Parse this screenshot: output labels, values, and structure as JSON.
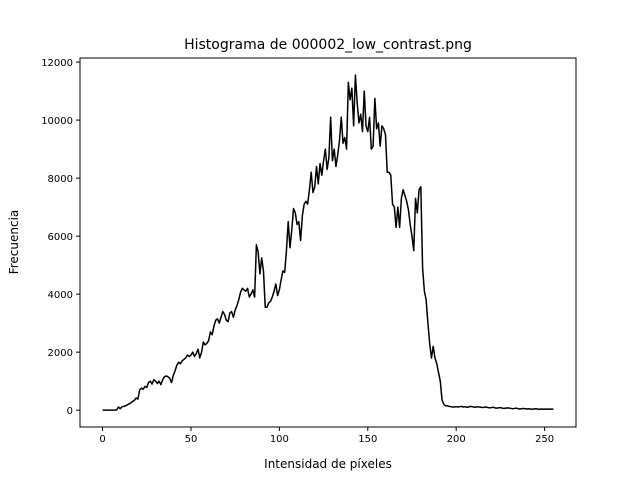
{
  "chart_data": {
    "type": "line",
    "title": "Histograma de 000002_low_contrast.png",
    "xlabel": "Intensidad de píxeles",
    "ylabel": "Frecuencia",
    "x": [
      0,
      1,
      2,
      3,
      4,
      5,
      6,
      7,
      8,
      9,
      10,
      11,
      12,
      13,
      14,
      15,
      16,
      17,
      18,
      19,
      20,
      21,
      22,
      23,
      24,
      25,
      26,
      27,
      28,
      29,
      30,
      31,
      32,
      33,
      34,
      35,
      36,
      37,
      38,
      39,
      40,
      41,
      42,
      43,
      44,
      45,
      46,
      47,
      48,
      49,
      50,
      51,
      52,
      53,
      54,
      55,
      56,
      57,
      58,
      59,
      60,
      61,
      62,
      63,
      64,
      65,
      66,
      67,
      68,
      69,
      70,
      71,
      72,
      73,
      74,
      75,
      76,
      77,
      78,
      79,
      80,
      81,
      82,
      83,
      84,
      85,
      86,
      87,
      88,
      89,
      90,
      91,
      92,
      93,
      94,
      95,
      96,
      97,
      98,
      99,
      100,
      101,
      102,
      103,
      104,
      105,
      106,
      107,
      108,
      109,
      110,
      111,
      112,
      113,
      114,
      115,
      116,
      117,
      118,
      119,
      120,
      121,
      122,
      123,
      124,
      125,
      126,
      127,
      128,
      129,
      130,
      131,
      132,
      133,
      134,
      135,
      136,
      137,
      138,
      139,
      140,
      141,
      142,
      143,
      144,
      145,
      146,
      147,
      148,
      149,
      150,
      151,
      152,
      153,
      154,
      155,
      156,
      157,
      158,
      159,
      160,
      161,
      162,
      163,
      164,
      165,
      166,
      167,
      168,
      169,
      170,
      171,
      172,
      173,
      174,
      175,
      176,
      177,
      178,
      179,
      180,
      181,
      182,
      183,
      184,
      185,
      186,
      187,
      188,
      189,
      190,
      191,
      192,
      193,
      194,
      195,
      196,
      197,
      198,
      199,
      200,
      201,
      202,
      203,
      204,
      205,
      206,
      207,
      208,
      209,
      210,
      211,
      212,
      213,
      214,
      215,
      216,
      217,
      218,
      219,
      220,
      221,
      222,
      223,
      224,
      225,
      226,
      227,
      228,
      229,
      230,
      231,
      232,
      233,
      234,
      235,
      236,
      237,
      238,
      239,
      240,
      241,
      242,
      243,
      244,
      245,
      246,
      247,
      248,
      249,
      250,
      251,
      252,
      253,
      254,
      255
    ],
    "series": [
      {
        "color": "#000000",
        "values": [
          0,
          0,
          0,
          0,
          0,
          0,
          0,
          0,
          10,
          110,
          50,
          120,
          130,
          150,
          180,
          220,
          250,
          300,
          340,
          420,
          380,
          700,
          760,
          720,
          820,
          780,
          950,
          1000,
          900,
          1050,
          1000,
          920,
          1000,
          880,
          1050,
          1150,
          1180,
          1150,
          1100,
          950,
          1200,
          1350,
          1550,
          1650,
          1600,
          1700,
          1750,
          1800,
          1900,
          1850,
          1900,
          2000,
          1850,
          1950,
          2100,
          1800,
          2000,
          2350,
          2250,
          2300,
          2400,
          2700,
          2600,
          2900,
          3100,
          3150,
          3000,
          3200,
          3400,
          3300,
          3100,
          3050,
          3350,
          3400,
          3200,
          3450,
          3600,
          3800,
          4050,
          4200,
          4150,
          4100,
          4200,
          3900,
          4000,
          4150,
          3900,
          5700,
          5450,
          4700,
          5250,
          4800,
          3550,
          3550,
          3700,
          3750,
          3900,
          4100,
          4350,
          3950,
          4150,
          4500,
          4800,
          4750,
          5500,
          6500,
          5600,
          6200,
          6950,
          6800,
          6400,
          6500,
          5850,
          6700,
          7100,
          7200,
          7100,
          7600,
          8200,
          7500,
          7700,
          8400,
          7800,
          8500,
          8100,
          8600,
          9000,
          8300,
          8700,
          10100,
          8600,
          9000,
          8400,
          8800,
          9300,
          10100,
          9200,
          9400,
          9000,
          11300,
          10700,
          11100,
          9800,
          11550,
          10600,
          9900,
          10200,
          9600,
          11000,
          9800,
          9600,
          10100,
          9000,
          9100,
          10750,
          9700,
          9900,
          9100,
          9800,
          9700,
          9500,
          8200,
          8200,
          8100,
          7100,
          7000,
          6300,
          7000,
          6300,
          7300,
          7600,
          7400,
          7200,
          6900,
          6400,
          6000,
          5500,
          7300,
          6800,
          7600,
          7700,
          4900,
          4100,
          3800,
          3000,
          2300,
          1800,
          2200,
          1800,
          1600,
          1300,
          1000,
          350,
          200,
          150,
          150,
          130,
          120,
          110,
          110,
          120,
          110,
          120,
          130,
          110,
          120,
          100,
          110,
          130,
          120,
          110,
          100,
          120,
          110,
          100,
          90,
          100,
          110,
          90,
          80,
          90,
          100,
          80,
          70,
          80,
          90,
          70,
          60,
          70,
          80,
          70,
          60,
          50,
          60,
          70,
          50,
          40,
          50,
          60,
          50,
          40,
          50,
          40,
          30,
          40,
          50,
          40,
          30,
          40,
          30,
          40,
          30,
          40,
          30,
          40,
          30
        ]
      }
    ],
    "xlim": [
      -12.75,
      267.75
    ],
    "ylim": [
      -580,
      12140
    ],
    "xticks": [
      0,
      50,
      100,
      150,
      200,
      250
    ],
    "yticks": [
      0,
      2000,
      4000,
      6000,
      8000,
      10000,
      12000
    ]
  }
}
